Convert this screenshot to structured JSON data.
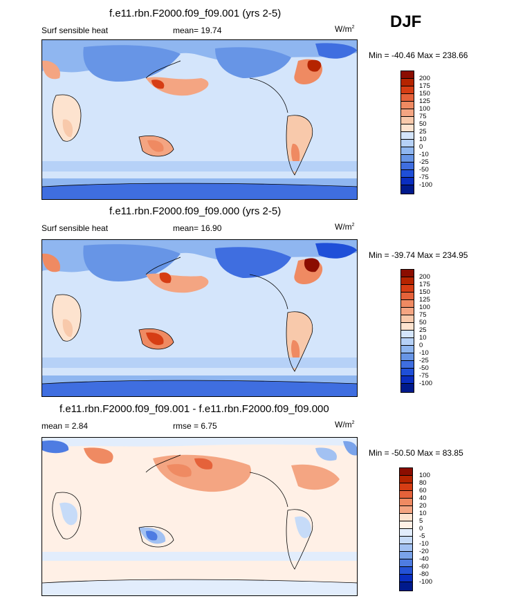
{
  "season": "DJF",
  "panels": [
    {
      "title": "f.e11.rbn.F2000.f09_f09.001 (yrs 2-5)",
      "left_label": "Surf sensible heat",
      "stat1": "mean=  19.74",
      "units": "W/m",
      "units_sup": "2",
      "minmax": "Min = -40.46 Max = 238.66",
      "chart_data": {
        "type": "contour-map",
        "variable": "Surf sensible heat",
        "units": "W/m2",
        "mean": 19.74,
        "min": -40.46,
        "max": 238.66,
        "levels": [
          "200",
          "175",
          "150",
          "125",
          "100",
          "75",
          "50",
          "25",
          "10",
          "0",
          "-10",
          "-25",
          "-50",
          "-75",
          "-100"
        ]
      }
    },
    {
      "title": "f.e11.rbn.F2000.f09_f09.000 (yrs 2-5)",
      "left_label": "Surf sensible heat",
      "stat1": "mean=  16.90",
      "units": "W/m",
      "units_sup": "2",
      "minmax": "Min = -39.74 Max = 234.95",
      "chart_data": {
        "type": "contour-map",
        "variable": "Surf sensible heat",
        "units": "W/m2",
        "mean": 16.9,
        "min": -39.74,
        "max": 234.95,
        "levels": [
          "200",
          "175",
          "150",
          "125",
          "100",
          "75",
          "50",
          "25",
          "10",
          "0",
          "-10",
          "-25",
          "-50",
          "-75",
          "-100"
        ]
      }
    },
    {
      "title": "f.e11.rbn.F2000.f09_f09.001 - f.e11.rbn.F2000.f09_f09.000",
      "left_label": "mean =   2.84",
      "stat1": "rmse =   6.75",
      "units": "W/m",
      "units_sup": "2",
      "minmax": "Min = -50.50 Max =  83.85",
      "chart_data": {
        "type": "contour-map",
        "variable": "difference",
        "units": "W/m2",
        "mean": 2.84,
        "rmse": 6.75,
        "min": -50.5,
        "max": 83.85,
        "levels": [
          "100",
          "80",
          "60",
          "40",
          "20",
          "10",
          "5",
          "0",
          "-5",
          "-10",
          "-20",
          "-40",
          "-60",
          "-80",
          "-100"
        ]
      }
    }
  ],
  "colors_pos": [
    "#8b0d00",
    "#b52400",
    "#d63d14",
    "#e5623a",
    "#ef8a62",
    "#f4a582",
    "#f8c9ab",
    "#fde3cf"
  ],
  "colors_neg": [
    "#d4e5fb",
    "#b6d1f7",
    "#8fb6f0",
    "#6795e6",
    "#3f6ee0",
    "#1f4fd8",
    "#0a2ec0",
    "#001a8c"
  ],
  "colors_diff": [
    "#8b0d00",
    "#b52400",
    "#d63d14",
    "#e5623a",
    "#ef8a62",
    "#f4a582",
    "#fde3cf",
    "#fff0e6",
    "#e2edfc",
    "#c6dbf8",
    "#a2c1f2",
    "#7aa3ea",
    "#4e7ce2",
    "#2452d6",
    "#001a8c"
  ]
}
